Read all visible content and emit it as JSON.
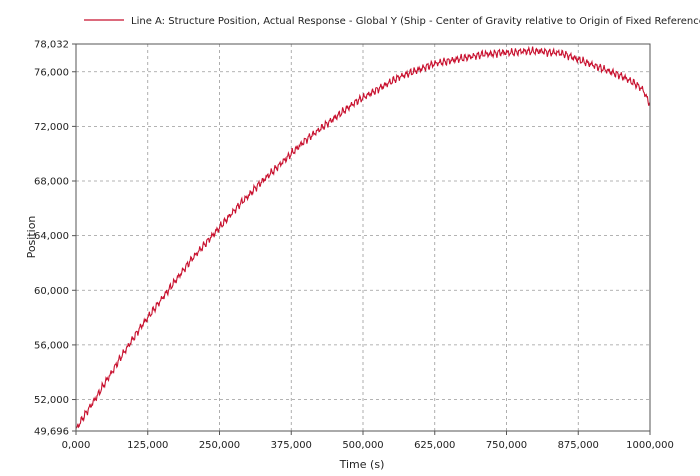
{
  "chart_data": {
    "type": "line",
    "title": "",
    "xlabel": "Time (s)",
    "ylabel": "Position",
    "xlim": [
      0,
      1000000
    ],
    "ylim": [
      49696,
      78032
    ],
    "x_ticks": [
      {
        "value": 0,
        "label": "0,000"
      },
      {
        "value": 125000,
        "label": "125,000"
      },
      {
        "value": 250000,
        "label": "250,000"
      },
      {
        "value": 375000,
        "label": "375,000"
      },
      {
        "value": 500000,
        "label": "500,000"
      },
      {
        "value": 625000,
        "label": "625,000"
      },
      {
        "value": 750000,
        "label": "750,000"
      },
      {
        "value": 875000,
        "label": "875,000"
      },
      {
        "value": 1000000,
        "label": "1000,000"
      }
    ],
    "y_ticks": [
      {
        "value": 49696,
        "label": "49,696"
      },
      {
        "value": 52000,
        "label": "52,000"
      },
      {
        "value": 56000,
        "label": "56,000"
      },
      {
        "value": 60000,
        "label": "60,000"
      },
      {
        "value": 64000,
        "label": "64,000"
      },
      {
        "value": 68000,
        "label": "68,000"
      },
      {
        "value": 72000,
        "label": "72,000"
      },
      {
        "value": 76000,
        "label": "76,000"
      },
      {
        "value": 78032,
        "label": "78,032"
      }
    ],
    "grid": true,
    "legend_position": "top",
    "series": [
      {
        "name": "Line A: Structure Position, Actual Response - Global Y (Ship - Center of Gravity relative to Origin of Fixed Reference Axes (FRA)) [m]",
        "color": "#c8102e",
        "x": [
          0,
          12500,
          25000,
          37500,
          50000,
          62500,
          75000,
          87500,
          100000,
          112500,
          125000,
          137500,
          150000,
          162500,
          175000,
          187500,
          200000,
          212500,
          225000,
          237500,
          250000,
          262500,
          275000,
          287500,
          300000,
          312500,
          325000,
          337500,
          350000,
          362500,
          375000,
          387500,
          400000,
          412500,
          425000,
          437500,
          450000,
          462500,
          475000,
          487500,
          500000,
          512500,
          525000,
          537500,
          550000,
          562500,
          575000,
          587500,
          600000,
          612500,
          625000,
          637500,
          650000,
          662500,
          675000,
          687500,
          700000,
          712500,
          725000,
          737500,
          750000,
          762500,
          775000,
          787500,
          800000,
          812500,
          825000,
          837500,
          850000,
          862500,
          875000,
          887500,
          900000,
          912500,
          925000,
          937500,
          950000,
          962500,
          975000,
          987500,
          1000000
        ],
        "values": [
          49800,
          50700,
          51500,
          52300,
          53200,
          54000,
          54900,
          55700,
          56500,
          57300,
          58000,
          58700,
          59400,
          60100,
          60800,
          61500,
          62200,
          62800,
          63400,
          64000,
          64600,
          65200,
          65800,
          66400,
          66900,
          67500,
          68000,
          68500,
          69000,
          69500,
          70000,
          70500,
          71000,
          71400,
          71800,
          72200,
          72600,
          73000,
          73400,
          73800,
          74100,
          74400,
          74700,
          75000,
          75300,
          75600,
          75800,
          76000,
          76200,
          76400,
          76600,
          76700,
          76800,
          76900,
          77000,
          77100,
          77200,
          77300,
          77300,
          77400,
          77400,
          77400,
          77500,
          77500,
          77500,
          77500,
          77400,
          77400,
          77300,
          77100,
          76900,
          76700,
          76500,
          76300,
          76100,
          75900,
          75700,
          75400,
          75100,
          74700,
          73600
        ]
      }
    ]
  }
}
